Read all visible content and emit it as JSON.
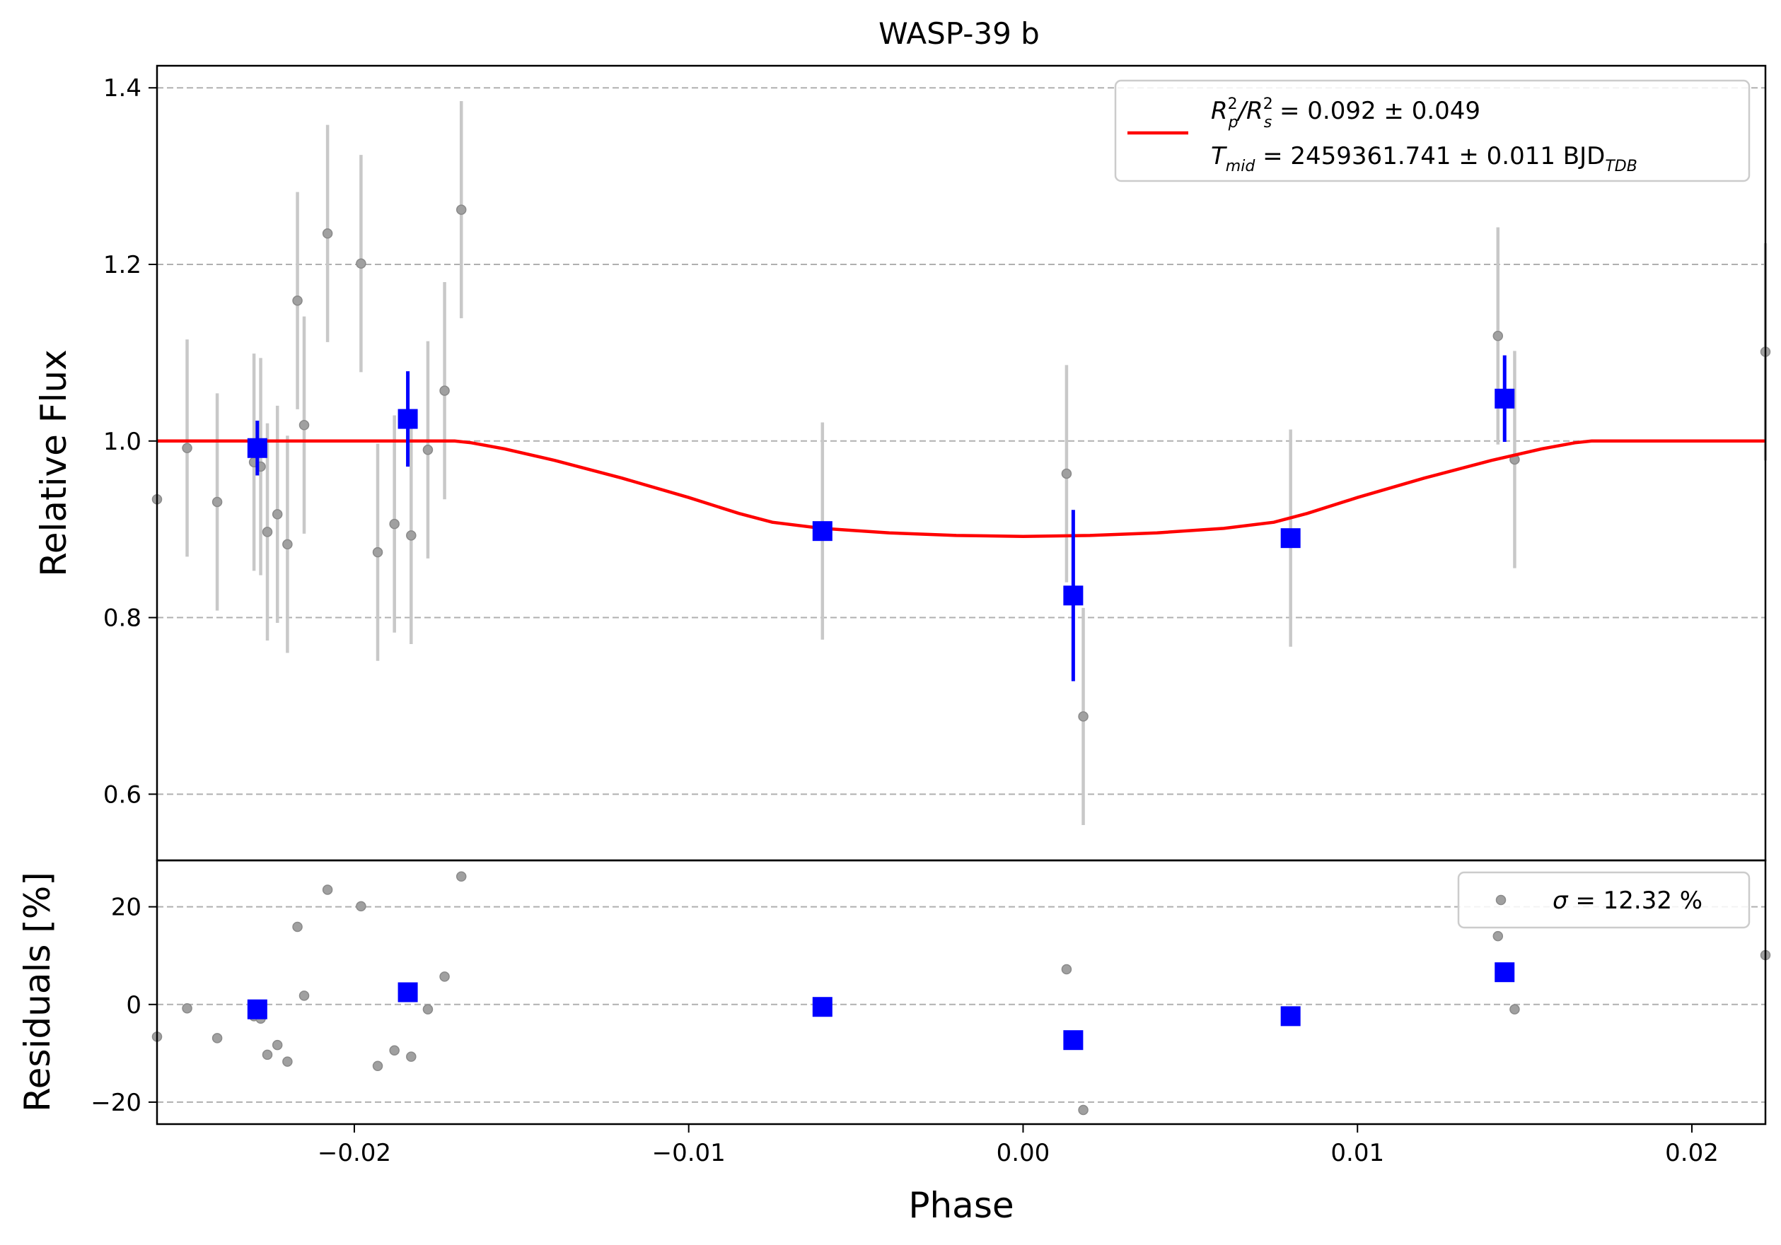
{
  "chart_data": {
    "type": "scatter",
    "title": "WASP-39 b",
    "xlabel": "Phase",
    "xlim": [
      -0.0259,
      0.0222
    ],
    "xticks": [
      {
        "value": -0.02,
        "label": "−0.02"
      },
      {
        "value": -0.01,
        "label": "−0.01"
      },
      {
        "value": 0.0,
        "label": "0.00"
      },
      {
        "value": 0.01,
        "label": "0.01"
      },
      {
        "value": 0.02,
        "label": "0.02"
      }
    ],
    "grid": "horizontal dashed",
    "colors": {
      "raw": "#a0a0a0",
      "raw_err": "#c8c8c8",
      "binned": "#0000ff",
      "model": "#ff0000",
      "grid": "#b0b0b0"
    },
    "top_panel": {
      "ylabel": "Relative Flux",
      "ylim": [
        0.525,
        1.425
      ],
      "yticks": [
        {
          "value": 0.6,
          "label": "0.6"
        },
        {
          "value": 0.8,
          "label": "0.8"
        },
        {
          "value": 1.0,
          "label": "1.0"
        },
        {
          "value": 1.2,
          "label": "1.2"
        },
        {
          "value": 1.4,
          "label": "1.4"
        }
      ],
      "legend": {
        "placement": "top-right",
        "line1": {
          "main": "R",
          "sup1": "2",
          "sub1": "p",
          "sep": "/R",
          "sup2": "2",
          "sub2": "s",
          "rest": " = 0.092 ± 0.049"
        },
        "line2": {
          "main": "T",
          "sub": "mid",
          "rest": " = 2459361.741 ± 0.011 BJD",
          "unit_sub": "TDB"
        }
      },
      "raw_points": [
        {
          "x": -0.0259,
          "y": 0.934,
          "err": 0
        },
        {
          "x": -0.025,
          "y": 0.992,
          "err": 0.123
        },
        {
          "x": -0.0241,
          "y": 0.931,
          "err": 0.123
        },
        {
          "x": -0.023,
          "y": 0.976,
          "err": 0.123
        },
        {
          "x": -0.0228,
          "y": 0.971,
          "err": 0.123
        },
        {
          "x": -0.0226,
          "y": 0.897,
          "err": 0.123
        },
        {
          "x": -0.0223,
          "y": 0.917,
          "err": 0.123
        },
        {
          "x": -0.022,
          "y": 0.883,
          "err": 0.123
        },
        {
          "x": -0.0217,
          "y": 1.159,
          "err": 0.123
        },
        {
          "x": -0.0215,
          "y": 1.018,
          "err": 0.123
        },
        {
          "x": -0.0208,
          "y": 1.235,
          "err": 0.123
        },
        {
          "x": -0.0198,
          "y": 1.201,
          "err": 0.123
        },
        {
          "x": -0.0193,
          "y": 0.874,
          "err": 0.123
        },
        {
          "x": -0.0188,
          "y": 0.906,
          "err": 0.123
        },
        {
          "x": -0.0183,
          "y": 0.893,
          "err": 0.123
        },
        {
          "x": -0.0178,
          "y": 0.99,
          "err": 0.123
        },
        {
          "x": -0.0173,
          "y": 1.057,
          "err": 0.123
        },
        {
          "x": -0.0168,
          "y": 1.262,
          "err": 0.123
        },
        {
          "x": -0.006,
          "y": 0.898,
          "err": 0.123
        },
        {
          "x": 0.0013,
          "y": 0.963,
          "err": 0.123
        },
        {
          "x": 0.0018,
          "y": 0.688,
          "err": 0.123
        },
        {
          "x": 0.008,
          "y": 0.89,
          "err": 0.123
        },
        {
          "x": 0.0142,
          "y": 1.119,
          "err": 0.123
        },
        {
          "x": 0.0147,
          "y": 0.979,
          "err": 0.123
        },
        {
          "x": 0.0222,
          "y": 1.101,
          "err": 0.123
        }
      ],
      "binned_points": [
        {
          "x": -0.0229,
          "y": 0.992,
          "err": 0.031
        },
        {
          "x": -0.0184,
          "y": 1.025,
          "err": 0.054
        },
        {
          "x": -0.006,
          "y": 0.898,
          "err": 0.0
        },
        {
          "x": 0.0015,
          "y": 0.825,
          "err": 0.097
        },
        {
          "x": 0.008,
          "y": 0.89,
          "err": 0.0
        },
        {
          "x": 0.0144,
          "y": 1.048,
          "err": 0.049
        }
      ],
      "model": {
        "x": [
          -0.0259,
          -0.017,
          -0.0165,
          -0.0155,
          -0.014,
          -0.012,
          -0.01,
          -0.0085,
          -0.0075,
          -0.006,
          -0.004,
          -0.002,
          0.0,
          0.002,
          0.004,
          0.006,
          0.0075,
          0.0085,
          0.01,
          0.012,
          0.014,
          0.0155,
          0.0165,
          0.017,
          0.0222
        ],
        "y": [
          1.0,
          1.0,
          0.998,
          0.991,
          0.978,
          0.958,
          0.936,
          0.918,
          0.908,
          0.901,
          0.896,
          0.893,
          0.892,
          0.893,
          0.896,
          0.901,
          0.908,
          0.918,
          0.936,
          0.958,
          0.978,
          0.991,
          0.998,
          1.0,
          1.0
        ]
      }
    },
    "bottom_panel": {
      "ylabel": "Residuals [%]",
      "ylim": [
        -24.5,
        29.5
      ],
      "yticks": [
        {
          "value": -20,
          "label": "−20"
        },
        {
          "value": 0,
          "label": "0"
        },
        {
          "value": 20,
          "label": "20"
        }
      ],
      "legend": {
        "placement": "top-right",
        "sigma_symbol": "σ",
        "text": " = 12.32 %"
      },
      "raw_points": [
        {
          "x": -0.0259,
          "y": -6.6
        },
        {
          "x": -0.025,
          "y": -0.8
        },
        {
          "x": -0.0241,
          "y": -6.9
        },
        {
          "x": -0.023,
          "y": -2.4
        },
        {
          "x": -0.0228,
          "y": -2.9
        },
        {
          "x": -0.0226,
          "y": -10.3
        },
        {
          "x": -0.0223,
          "y": -8.3
        },
        {
          "x": -0.022,
          "y": -11.7
        },
        {
          "x": -0.0217,
          "y": 15.9
        },
        {
          "x": -0.0215,
          "y": 1.8
        },
        {
          "x": -0.0208,
          "y": 23.5
        },
        {
          "x": -0.0198,
          "y": 20.1
        },
        {
          "x": -0.0193,
          "y": -12.6
        },
        {
          "x": -0.0188,
          "y": -9.4
        },
        {
          "x": -0.0183,
          "y": -10.7
        },
        {
          "x": -0.0178,
          "y": -1.0
        },
        {
          "x": -0.0173,
          "y": 5.7
        },
        {
          "x": -0.0168,
          "y": 26.2
        },
        {
          "x": 0.0013,
          "y": 7.2
        },
        {
          "x": 0.0018,
          "y": -21.6
        },
        {
          "x": 0.0142,
          "y": 14.0
        },
        {
          "x": 0.0147,
          "y": -1.0
        },
        {
          "x": 0.0222,
          "y": 10.1
        }
      ],
      "binned_points": [
        {
          "x": -0.0229,
          "y": -1.0
        },
        {
          "x": -0.0184,
          "y": 2.5
        },
        {
          "x": -0.006,
          "y": -0.5
        },
        {
          "x": 0.0015,
          "y": -7.3
        },
        {
          "x": 0.008,
          "y": -2.4
        },
        {
          "x": 0.0144,
          "y": 6.6
        }
      ]
    }
  }
}
